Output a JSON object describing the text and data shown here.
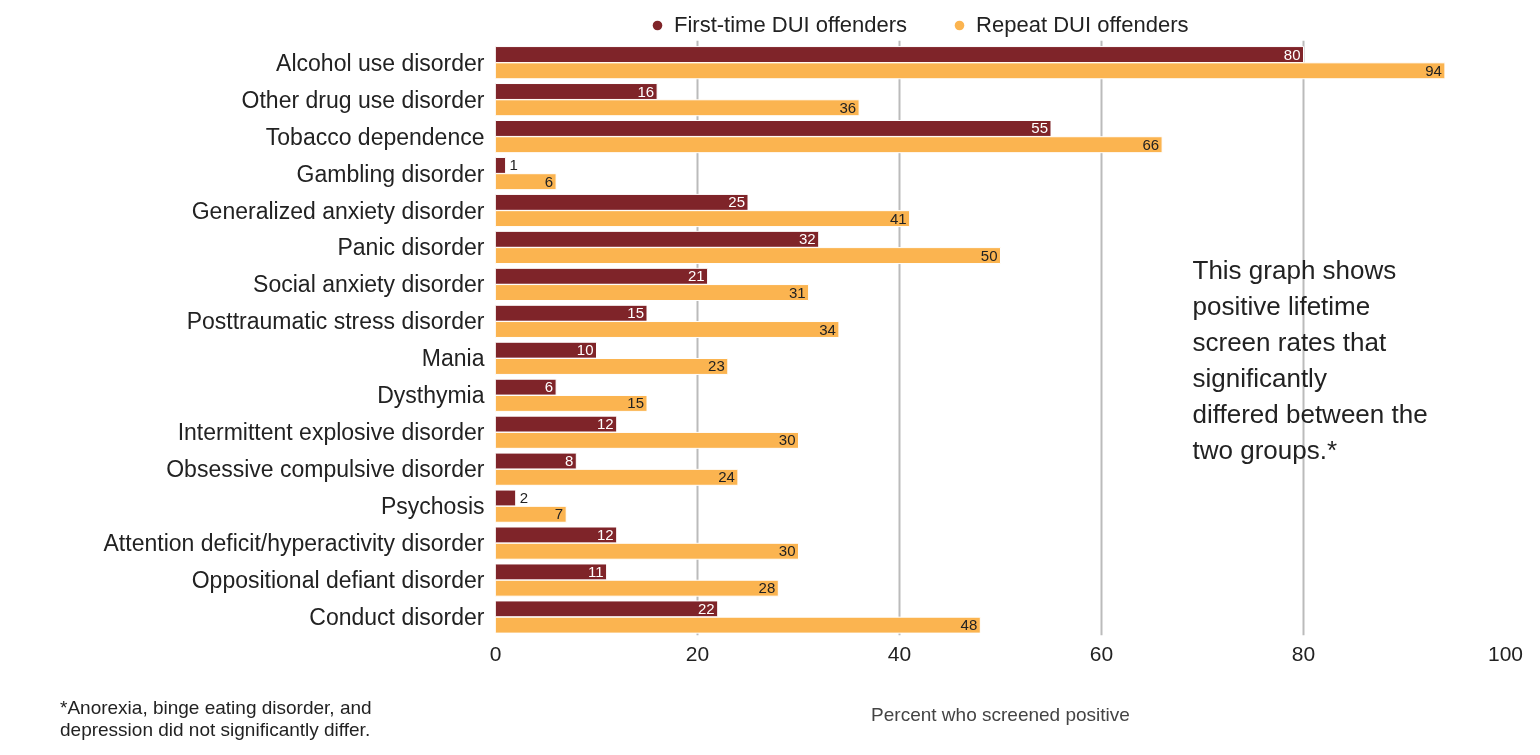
{
  "chart_data": {
    "type": "bar",
    "orientation": "horizontal",
    "xlabel": "Percent who screened positive",
    "categories": [
      "Alcohol use disorder",
      "Other drug use disorder",
      "Tobacco dependence",
      "Gambling disorder",
      "Generalized anxiety disorder",
      "Panic disorder",
      "Social anxiety disorder",
      "Posttraumatic stress disorder",
      "Mania",
      "Dysthymia",
      "Intermittent explosive disorder",
      "Obsessive compulsive disorder",
      "Psychosis",
      "Attention deficit/hyperactivity disorder",
      "Oppositional defiant disorder",
      "Conduct disorder"
    ],
    "series": [
      {
        "name": "First-time DUI offenders",
        "color": "#7f2429",
        "values": [
          80,
          16,
          55,
          1,
          25,
          32,
          21,
          15,
          10,
          6,
          12,
          8,
          2,
          12,
          11,
          22
        ]
      },
      {
        "name": "Repeat DUI offenders",
        "color": "#fbb450",
        "values": [
          94,
          36,
          66,
          6,
          41,
          50,
          31,
          34,
          23,
          15,
          30,
          24,
          7,
          30,
          28,
          48
        ]
      }
    ],
    "xlim": [
      0,
      100
    ],
    "xticks": [
      0,
      20,
      40,
      60,
      80,
      100
    ],
    "grid": "x",
    "legend": "top",
    "data_labels": true,
    "annotations": [
      "This graph shows positive lifetime screen rates that significantly differed between the two groups.*",
      "*Anorexia, binge eating disorder, and depression did not significantly differ."
    ]
  }
}
